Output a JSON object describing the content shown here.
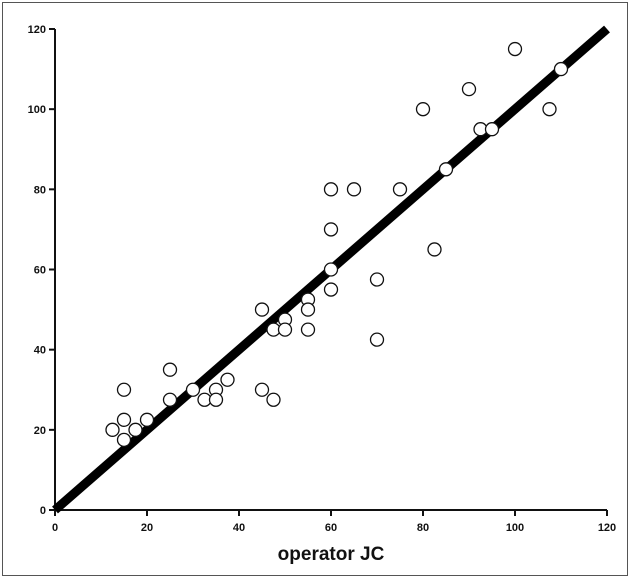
{
  "chart_data": {
    "type": "scatter",
    "title": "",
    "xlabel": "operator JC",
    "ylabel": "",
    "xlim": [
      0,
      120
    ],
    "ylim": [
      0,
      120
    ],
    "xticks": [
      0,
      20,
      40,
      60,
      80,
      100,
      120
    ],
    "yticks": [
      0,
      20,
      40,
      60,
      80,
      100,
      120
    ],
    "grid": false,
    "marker": "open-circle",
    "reference_line": {
      "from": [
        0,
        0
      ],
      "to": [
        120,
        120
      ]
    },
    "points": [
      {
        "x": 12.5,
        "y": 20
      },
      {
        "x": 15,
        "y": 30
      },
      {
        "x": 15,
        "y": 22.5
      },
      {
        "x": 15,
        "y": 17.5
      },
      {
        "x": 17.5,
        "y": 20
      },
      {
        "x": 20,
        "y": 22.5
      },
      {
        "x": 25,
        "y": 35
      },
      {
        "x": 25,
        "y": 27.5
      },
      {
        "x": 30,
        "y": 30
      },
      {
        "x": 32.5,
        "y": 27.5
      },
      {
        "x": 35,
        "y": 30
      },
      {
        "x": 35,
        "y": 27.5
      },
      {
        "x": 37.5,
        "y": 32.5
      },
      {
        "x": 45,
        "y": 50
      },
      {
        "x": 45,
        "y": 30
      },
      {
        "x": 47.5,
        "y": 45
      },
      {
        "x": 47.5,
        "y": 27.5
      },
      {
        "x": 50,
        "y": 47.5
      },
      {
        "x": 50,
        "y": 45
      },
      {
        "x": 55,
        "y": 52.5
      },
      {
        "x": 55,
        "y": 50
      },
      {
        "x": 55,
        "y": 45
      },
      {
        "x": 60,
        "y": 80
      },
      {
        "x": 60,
        "y": 70
      },
      {
        "x": 60,
        "y": 60
      },
      {
        "x": 60,
        "y": 55
      },
      {
        "x": 65,
        "y": 80
      },
      {
        "x": 70,
        "y": 57.5
      },
      {
        "x": 70,
        "y": 42.5
      },
      {
        "x": 75,
        "y": 80
      },
      {
        "x": 80,
        "y": 100
      },
      {
        "x": 82.5,
        "y": 65
      },
      {
        "x": 85,
        "y": 85
      },
      {
        "x": 90,
        "y": 105
      },
      {
        "x": 92.5,
        "y": 95
      },
      {
        "x": 95,
        "y": 95
      },
      {
        "x": 100,
        "y": 115
      },
      {
        "x": 107.5,
        "y": 100
      },
      {
        "x": 110,
        "y": 110
      }
    ]
  }
}
